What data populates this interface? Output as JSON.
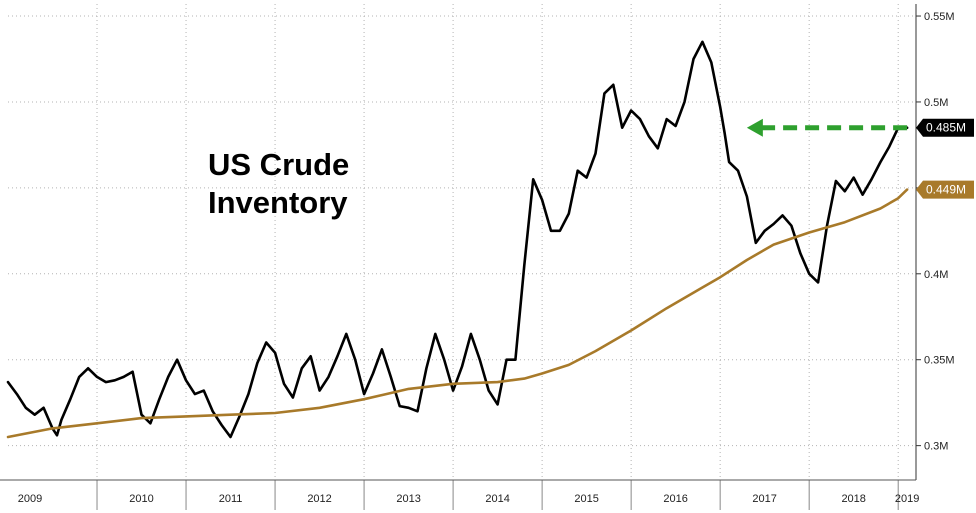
{
  "chart_data": {
    "type": "line",
    "title_lines": [
      "US Crude",
      "Inventory"
    ],
    "xlabel": "",
    "ylabel": "",
    "x_tick_labels": [
      "2009",
      "2010",
      "2011",
      "2012",
      "2013",
      "2014",
      "2015",
      "2016",
      "2017",
      "2018",
      "2019"
    ],
    "y_tick_labels": [
      "0.3M",
      "0.35M",
      "0.4M",
      "0.45M",
      "0.5M",
      "0.55M"
    ],
    "y_ticks": [
      0.3,
      0.35,
      0.4,
      0.45,
      0.5,
      0.55
    ],
    "ylim": [
      0.28,
      0.557
    ],
    "xlim": [
      2009.0,
      2019.2
    ],
    "grid": true,
    "axis_side": "right",
    "colors": {
      "inventory": "#000000",
      "moving_average": "#a87a2a",
      "arrow": "#2ea02e",
      "grid": "#b3b3b3"
    },
    "last_value_labels": [
      {
        "series": "inventory",
        "text": "0.485M",
        "color": "#000000"
      },
      {
        "series": "moving_average",
        "text": "0.449M",
        "color": "#a87a2a"
      }
    ],
    "annotation": {
      "type": "horizontal-arrow",
      "from_x": 2019.1,
      "to_x": 2017.3,
      "y": 0.485,
      "color": "#2ea02e"
    },
    "series": [
      {
        "key": "inventory",
        "x": [
          2009.0,
          2009.1,
          2009.2,
          2009.3,
          2009.4,
          2009.5,
          2009.55,
          2009.6,
          2009.7,
          2009.8,
          2009.9,
          2010.0,
          2010.1,
          2010.2,
          2010.3,
          2010.4,
          2010.5,
          2010.6,
          2010.7,
          2010.8,
          2010.9,
          2011.0,
          2011.1,
          2011.2,
          2011.3,
          2011.4,
          2011.5,
          2011.6,
          2011.7,
          2011.8,
          2011.9,
          2012.0,
          2012.05,
          2012.1,
          2012.2,
          2012.3,
          2012.4,
          2012.5,
          2012.6,
          2012.7,
          2012.8,
          2012.9,
          2013.0,
          2013.1,
          2013.2,
          2013.3,
          2013.4,
          2013.5,
          2013.6,
          2013.7,
          2013.8,
          2013.9,
          2014.0,
          2014.1,
          2014.2,
          2014.3,
          2014.4,
          2014.5,
          2014.6,
          2014.7,
          2014.8,
          2014.9,
          2015.0,
          2015.1,
          2015.2,
          2015.3,
          2015.4,
          2015.5,
          2015.6,
          2015.7,
          2015.8,
          2015.9,
          2016.0,
          2016.1,
          2016.2,
          2016.3,
          2016.4,
          2016.5,
          2016.6,
          2016.7,
          2016.8,
          2016.9,
          2017.0,
          2017.05,
          2017.1,
          2017.2,
          2017.3,
          2017.4,
          2017.5,
          2017.6,
          2017.7,
          2017.8,
          2017.9,
          2018.0,
          2018.1,
          2018.2,
          2018.3,
          2018.4,
          2018.5,
          2018.6,
          2018.7,
          2018.8,
          2018.9,
          2019.0,
          2019.1
        ],
        "values": [
          0.337,
          0.33,
          0.322,
          0.318,
          0.322,
          0.31,
          0.306,
          0.315,
          0.327,
          0.34,
          0.345,
          0.34,
          0.337,
          0.338,
          0.34,
          0.343,
          0.318,
          0.313,
          0.327,
          0.34,
          0.35,
          0.338,
          0.33,
          0.332,
          0.32,
          0.312,
          0.305,
          0.317,
          0.33,
          0.348,
          0.36,
          0.354,
          0.345,
          0.336,
          0.328,
          0.345,
          0.352,
          0.332,
          0.34,
          0.352,
          0.365,
          0.35,
          0.33,
          0.342,
          0.356,
          0.34,
          0.323,
          0.322,
          0.32,
          0.345,
          0.365,
          0.35,
          0.332,
          0.346,
          0.365,
          0.35,
          0.332,
          0.324,
          0.35,
          0.35,
          0.405,
          0.455,
          0.443,
          0.425,
          0.425,
          0.435,
          0.46,
          0.456,
          0.47,
          0.505,
          0.51,
          0.485,
          0.495,
          0.49,
          0.48,
          0.473,
          0.49,
          0.486,
          0.5,
          0.525,
          0.535,
          0.523,
          0.497,
          0.482,
          0.465,
          0.46,
          0.445,
          0.418,
          0.425,
          0.429,
          0.434,
          0.428,
          0.412,
          0.4,
          0.395,
          0.428,
          0.454,
          0.448,
          0.456,
          0.446,
          0.455,
          0.465,
          0.474,
          0.485,
          0.485
        ]
      },
      {
        "key": "moving_average",
        "x": [
          2009.0,
          2009.5,
          2010.0,
          2010.5,
          2011.0,
          2011.5,
          2012.0,
          2012.5,
          2013.0,
          2013.5,
          2014.0,
          2014.5,
          2014.8,
          2015.0,
          2015.3,
          2015.6,
          2016.0,
          2016.4,
          2016.8,
          2017.0,
          2017.3,
          2017.6,
          2018.0,
          2018.4,
          2018.8,
          2019.0,
          2019.1
        ],
        "values": [
          0.305,
          0.31,
          0.313,
          0.316,
          0.317,
          0.318,
          0.319,
          0.322,
          0.327,
          0.333,
          0.336,
          0.337,
          0.339,
          0.342,
          0.347,
          0.355,
          0.367,
          0.38,
          0.392,
          0.398,
          0.408,
          0.417,
          0.424,
          0.43,
          0.438,
          0.444,
          0.449
        ]
      }
    ]
  }
}
